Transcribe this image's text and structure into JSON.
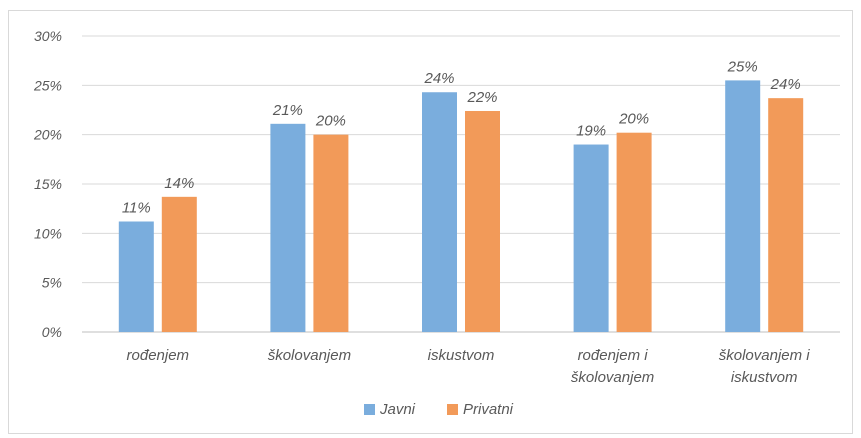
{
  "chart_data": {
    "type": "bar",
    "title": "",
    "xlabel": "",
    "ylabel": "",
    "ylim": [
      0,
      30
    ],
    "yticks": [
      0,
      5,
      10,
      15,
      20,
      25,
      30
    ],
    "ytick_labels": [
      "0%",
      "5%",
      "10%",
      "15%",
      "20%",
      "25%",
      "30%"
    ],
    "grid": true,
    "legend_position": "bottom",
    "categories": [
      [
        "rođenjem"
      ],
      [
        "školovanjem"
      ],
      [
        "iskustvom"
      ],
      [
        "rođenjem i",
        "školovanjem"
      ],
      [
        "školovanjem i",
        "iskustvom"
      ]
    ],
    "series": [
      {
        "name": "Javni",
        "color": "#7AADDD",
        "values": [
          11.2,
          21.1,
          24.3,
          19.0,
          25.5
        ],
        "labels": [
          "11%",
          "21%",
          "24%",
          "19%",
          "25%"
        ]
      },
      {
        "name": "Privatni",
        "color": "#F29A59",
        "values": [
          13.7,
          20.0,
          22.4,
          20.2,
          23.7
        ],
        "labels": [
          "14%",
          "20%",
          "22%",
          "20%",
          "24%"
        ]
      }
    ]
  }
}
